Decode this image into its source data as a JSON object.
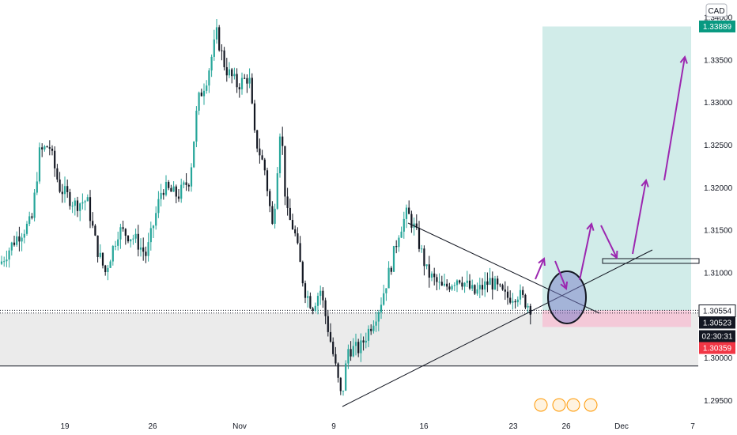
{
  "chart_data": {
    "type": "candlestick",
    "currency_button": "CAD",
    "ylim": [
      1.2935,
      1.342
    ],
    "y_ticks": [
      "1.29500",
      "1.30000",
      "1.30500",
      "1.31000",
      "1.31500",
      "1.32000",
      "1.32500",
      "1.33000",
      "1.33500",
      "1.34000"
    ],
    "x_ticks": [
      "19",
      "26",
      "Nov",
      "9",
      "16",
      "23",
      "26",
      "Dec",
      "7"
    ],
    "price_labels": [
      {
        "label": "1.33889",
        "value": 1.33889,
        "role": "take-profit"
      },
      {
        "label": "1.30554",
        "value": 1.30554,
        "role": "entry"
      },
      {
        "label": "1.30523",
        "value": 1.30523,
        "role": "last-price"
      },
      {
        "label": "02:30:31",
        "value": 1.3043,
        "role": "countdown"
      },
      {
        "label": "1.30359",
        "value": 1.30359,
        "role": "stop-loss"
      }
    ],
    "support_zone": [
      1.299,
      1.3052
    ],
    "colors": {
      "up": "#26a69a",
      "down": "#131722",
      "take_profit_zone": "#b2dfdb",
      "stop_loss_zone": "#f8bbd0",
      "last_price": "#131722",
      "take_profit_label": "#089981",
      "stop_loss_label": "#f23645",
      "arrows": "#9c27b0"
    }
  }
}
